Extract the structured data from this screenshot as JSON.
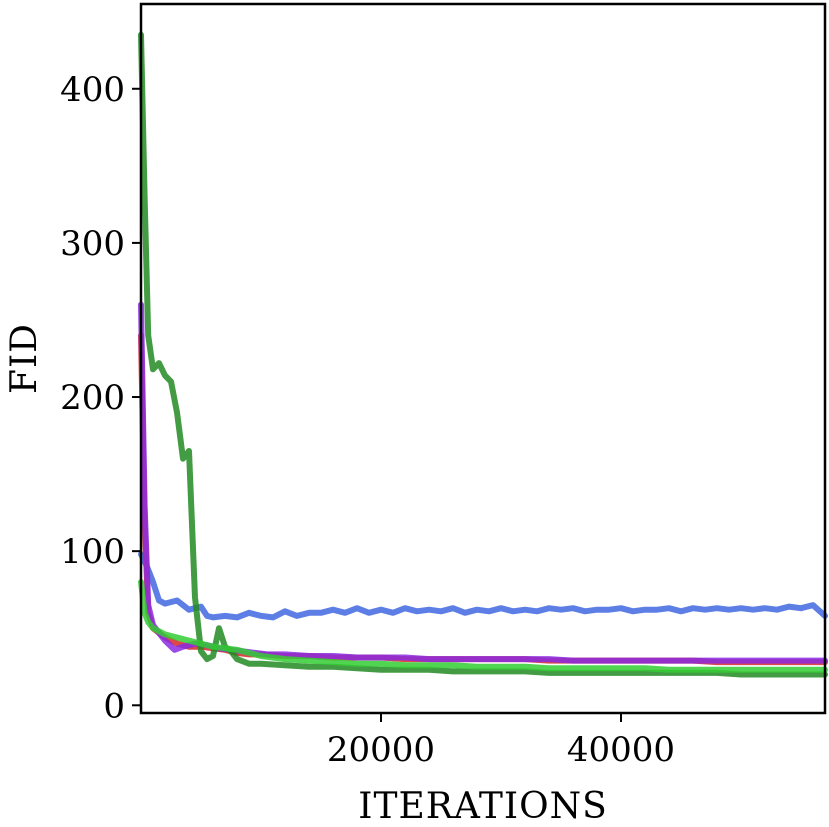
{
  "chart_data": {
    "type": "line",
    "title": "",
    "xlabel": "ITERATIONS",
    "ylabel": "FID",
    "xlim": [
      0,
      57000
    ],
    "ylim": [
      -5,
      455
    ],
    "xticks": [
      20000,
      40000
    ],
    "yticks": [
      0,
      100,
      200,
      300,
      400
    ],
    "grid": false,
    "legend": "none",
    "series": [
      {
        "color": "#4169e1",
        "points": [
          [
            0,
            98
          ],
          [
            500,
            90
          ],
          [
            1000,
            80
          ],
          [
            1500,
            68
          ],
          [
            2000,
            66
          ],
          [
            3000,
            68
          ],
          [
            4000,
            62
          ],
          [
            5000,
            64
          ],
          [
            5500,
            58
          ],
          [
            6000,
            57
          ],
          [
            7000,
            58
          ],
          [
            8000,
            57
          ],
          [
            9000,
            60
          ],
          [
            10000,
            58
          ],
          [
            11000,
            57
          ],
          [
            12000,
            61
          ],
          [
            13000,
            58
          ],
          [
            14000,
            60
          ],
          [
            15000,
            60
          ],
          [
            16000,
            62
          ],
          [
            17000,
            60
          ],
          [
            18000,
            63
          ],
          [
            19000,
            60
          ],
          [
            20000,
            62
          ],
          [
            21000,
            60
          ],
          [
            22000,
            63
          ],
          [
            23000,
            61
          ],
          [
            24000,
            62
          ],
          [
            25000,
            61
          ],
          [
            26000,
            63
          ],
          [
            27000,
            60
          ],
          [
            28000,
            62
          ],
          [
            29000,
            61
          ],
          [
            30000,
            63
          ],
          [
            31000,
            61
          ],
          [
            32000,
            62
          ],
          [
            33000,
            61
          ],
          [
            34000,
            63
          ],
          [
            35000,
            62
          ],
          [
            36000,
            63
          ],
          [
            37000,
            61
          ],
          [
            38000,
            62
          ],
          [
            39000,
            62
          ],
          [
            40000,
            63
          ],
          [
            41000,
            61
          ],
          [
            42000,
            62
          ],
          [
            43000,
            62
          ],
          [
            44000,
            63
          ],
          [
            45000,
            61
          ],
          [
            46000,
            63
          ],
          [
            47000,
            62
          ],
          [
            48000,
            63
          ],
          [
            49000,
            62
          ],
          [
            50000,
            63
          ],
          [
            51000,
            62
          ],
          [
            52000,
            63
          ],
          [
            53000,
            62
          ],
          [
            54000,
            64
          ],
          [
            55000,
            63
          ],
          [
            56000,
            65
          ],
          [
            57000,
            58
          ]
        ]
      },
      {
        "color": "#d62728",
        "points": [
          [
            0,
            240
          ],
          [
            300,
            120
          ],
          [
            600,
            60
          ],
          [
            1000,
            50
          ],
          [
            2000,
            44
          ],
          [
            3000,
            40
          ],
          [
            4000,
            38
          ],
          [
            5000,
            38
          ],
          [
            6000,
            37
          ],
          [
            7000,
            36
          ],
          [
            8000,
            34
          ],
          [
            9000,
            33
          ],
          [
            10000,
            33
          ],
          [
            12000,
            32
          ],
          [
            14000,
            32
          ],
          [
            16000,
            31
          ],
          [
            18000,
            31
          ],
          [
            20000,
            31
          ],
          [
            22000,
            30
          ],
          [
            24000,
            30
          ],
          [
            26000,
            30
          ],
          [
            28000,
            30
          ],
          [
            30000,
            30
          ],
          [
            32000,
            30
          ],
          [
            34000,
            29
          ],
          [
            36000,
            29
          ],
          [
            38000,
            29
          ],
          [
            40000,
            29
          ],
          [
            42000,
            29
          ],
          [
            44000,
            29
          ],
          [
            46000,
            29
          ],
          [
            48000,
            28
          ],
          [
            50000,
            28
          ],
          [
            52000,
            28
          ],
          [
            54000,
            28
          ],
          [
            56000,
            28
          ],
          [
            57000,
            28
          ]
        ]
      },
      {
        "color": "#8a2be2",
        "points": [
          [
            0,
            260
          ],
          [
            300,
            130
          ],
          [
            600,
            65
          ],
          [
            1000,
            52
          ],
          [
            2000,
            42
          ],
          [
            2800,
            36
          ],
          [
            3500,
            38
          ],
          [
            4500,
            40
          ],
          [
            5500,
            39
          ],
          [
            6500,
            37
          ],
          [
            7500,
            36
          ],
          [
            8500,
            35
          ],
          [
            9500,
            34
          ],
          [
            10500,
            33
          ],
          [
            12000,
            33
          ],
          [
            14000,
            32
          ],
          [
            16000,
            32
          ],
          [
            18000,
            31
          ],
          [
            20000,
            31
          ],
          [
            22000,
            31
          ],
          [
            24000,
            30
          ],
          [
            26000,
            30
          ],
          [
            28000,
            30
          ],
          [
            30000,
            30
          ],
          [
            32000,
            30
          ],
          [
            34000,
            30
          ],
          [
            36000,
            29
          ],
          [
            38000,
            29
          ],
          [
            40000,
            29
          ],
          [
            42000,
            29
          ],
          [
            44000,
            29
          ],
          [
            46000,
            29
          ],
          [
            48000,
            29
          ],
          [
            50000,
            29
          ],
          [
            52000,
            29
          ],
          [
            54000,
            29
          ],
          [
            56000,
            29
          ],
          [
            57000,
            29
          ]
        ]
      },
      {
        "color": "#228b22",
        "points": [
          [
            0,
            435
          ],
          [
            300,
            330
          ],
          [
            600,
            240
          ],
          [
            1000,
            218
          ],
          [
            1500,
            222
          ],
          [
            2000,
            214
          ],
          [
            2500,
            210
          ],
          [
            3000,
            190
          ],
          [
            3500,
            160
          ],
          [
            4000,
            165
          ],
          [
            4500,
            70
          ],
          [
            5000,
            35
          ],
          [
            5500,
            30
          ],
          [
            6000,
            32
          ],
          [
            6500,
            50
          ],
          [
            7000,
            38
          ],
          [
            7500,
            35
          ],
          [
            8000,
            30
          ],
          [
            9000,
            27
          ],
          [
            10000,
            27
          ],
          [
            12000,
            26
          ],
          [
            14000,
            25
          ],
          [
            16000,
            25
          ],
          [
            18000,
            24
          ],
          [
            20000,
            23
          ],
          [
            22000,
            23
          ],
          [
            24000,
            23
          ],
          [
            26000,
            22
          ],
          [
            28000,
            22
          ],
          [
            30000,
            22
          ],
          [
            32000,
            22
          ],
          [
            34000,
            21
          ],
          [
            36000,
            21
          ],
          [
            38000,
            21
          ],
          [
            40000,
            21
          ],
          [
            42000,
            21
          ],
          [
            44000,
            21
          ],
          [
            46000,
            21
          ],
          [
            48000,
            21
          ],
          [
            50000,
            20
          ],
          [
            52000,
            20
          ],
          [
            54000,
            20
          ],
          [
            56000,
            20
          ],
          [
            57000,
            20
          ]
        ]
      },
      {
        "color": "#32cd32",
        "points": [
          [
            0,
            80
          ],
          [
            300,
            60
          ],
          [
            600,
            54
          ],
          [
            1000,
            50
          ],
          [
            2000,
            46
          ],
          [
            3000,
            44
          ],
          [
            4000,
            42
          ],
          [
            5000,
            40
          ],
          [
            6000,
            38
          ],
          [
            7000,
            37
          ],
          [
            8000,
            36
          ],
          [
            9000,
            34
          ],
          [
            10000,
            32
          ],
          [
            12000,
            30
          ],
          [
            14000,
            29
          ],
          [
            16000,
            28
          ],
          [
            18000,
            27
          ],
          [
            20000,
            27
          ],
          [
            22000,
            26
          ],
          [
            24000,
            26
          ],
          [
            26000,
            26
          ],
          [
            28000,
            25
          ],
          [
            30000,
            25
          ],
          [
            32000,
            25
          ],
          [
            34000,
            24
          ],
          [
            36000,
            24
          ],
          [
            38000,
            24
          ],
          [
            40000,
            24
          ],
          [
            42000,
            24
          ],
          [
            44000,
            23
          ],
          [
            46000,
            23
          ],
          [
            48000,
            23
          ],
          [
            50000,
            23
          ],
          [
            52000,
            23
          ],
          [
            54000,
            23
          ],
          [
            56000,
            23
          ],
          [
            57000,
            23
          ]
        ]
      }
    ]
  }
}
